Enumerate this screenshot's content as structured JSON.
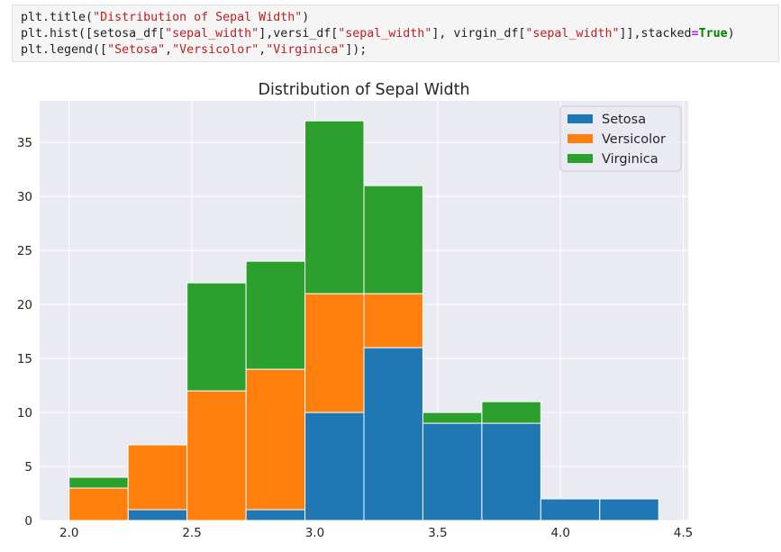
{
  "code": {
    "line1": {
      "a": "plt.title(",
      "s1": "\"Distribution of Sepal Width\"",
      "b": ")"
    },
    "line2": {
      "a": "plt.hist([setosa_df[",
      "s1": "\"sepal_width\"",
      "b": "],versi_df[",
      "s2": "\"sepal_width\"",
      "c": "], virgin_df[",
      "s3": "\"sepal_width\"",
      "d": "]],stacked",
      "op": "=",
      "kw": "True",
      "e": ")"
    },
    "line3": {
      "a": "plt.legend([",
      "s1": "\"Setosa\"",
      "b": ",",
      "s2": "\"Versicolor\"",
      "c": ",",
      "s3": "\"Virginica\"",
      "d": "]);"
    }
  },
  "chart_data": {
    "type": "bar",
    "subtype": "stacked-histogram",
    "title": "Distribution of Sepal Width",
    "xlabel": "",
    "ylabel": "",
    "bin_edges": [
      2.0,
      2.24,
      2.48,
      2.72,
      2.96,
      3.2,
      3.44,
      3.68,
      3.92,
      4.16,
      4.4
    ],
    "series": [
      {
        "name": "Setosa",
        "color": "#1f77b4",
        "values": [
          0,
          1,
          0,
          1,
          10,
          16,
          9,
          9,
          2,
          2
        ]
      },
      {
        "name": "Versicolor",
        "color": "#ff7f0e",
        "values": [
          3,
          6,
          12,
          13,
          11,
          5,
          0,
          0,
          0,
          0
        ]
      },
      {
        "name": "Virginica",
        "color": "#2ca02c",
        "values": [
          1,
          0,
          10,
          10,
          16,
          10,
          1,
          2,
          0,
          0
        ]
      }
    ],
    "xticks": [
      2.0,
      2.5,
      3.0,
      3.5,
      4.0,
      4.5
    ],
    "xtick_labels": [
      "2.0",
      "2.5",
      "3.0",
      "3.5",
      "4.0",
      "4.5"
    ],
    "yticks": [
      0,
      5,
      10,
      15,
      20,
      25,
      30,
      35
    ],
    "ytick_labels": [
      "0",
      "5",
      "10",
      "15",
      "20",
      "25",
      "30",
      "35"
    ],
    "xlim": [
      1.88,
      4.52
    ],
    "ylim": [
      0,
      38.85
    ],
    "grid": true,
    "legend_position": "top-right",
    "background_color": "#eaeaf2",
    "grid_color": "#ffffff"
  }
}
